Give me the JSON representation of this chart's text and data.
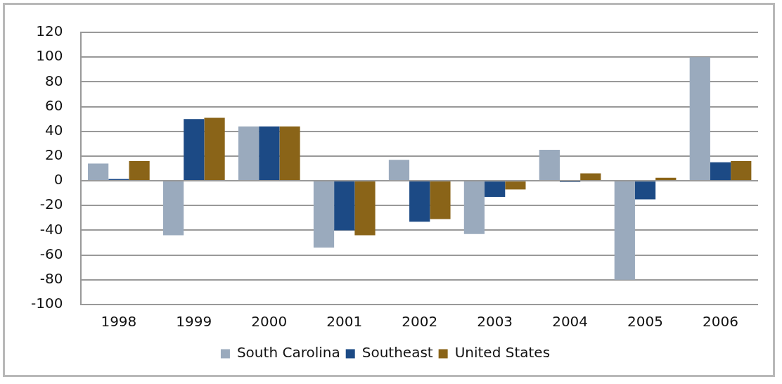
{
  "chart_data": {
    "type": "bar",
    "categories": [
      "1998",
      "1999",
      "2000",
      "2001",
      "2002",
      "2003",
      "2004",
      "2005",
      "2006"
    ],
    "series": [
      {
        "name": "South Carolina",
        "color": "#9aaabd",
        "values": [
          14,
          -44,
          44,
          -54,
          17,
          -43,
          25,
          -80,
          100
        ]
      },
      {
        "name": "Southeast",
        "color": "#1c4a85",
        "values": [
          1.5,
          50,
          44,
          -40,
          -33,
          -13,
          -1,
          -15,
          15
        ]
      },
      {
        "name": "United States",
        "color": "#8a6418",
        "values": [
          16,
          51,
          44,
          -44,
          -31,
          -7,
          6,
          2.5,
          16
        ]
      }
    ],
    "ylim": [
      -100,
      120
    ],
    "yticks": [
      -100,
      -80,
      -60,
      -40,
      -20,
      0,
      20,
      40,
      60,
      80,
      100,
      120
    ],
    "grid": "y",
    "legend": "bottom"
  }
}
